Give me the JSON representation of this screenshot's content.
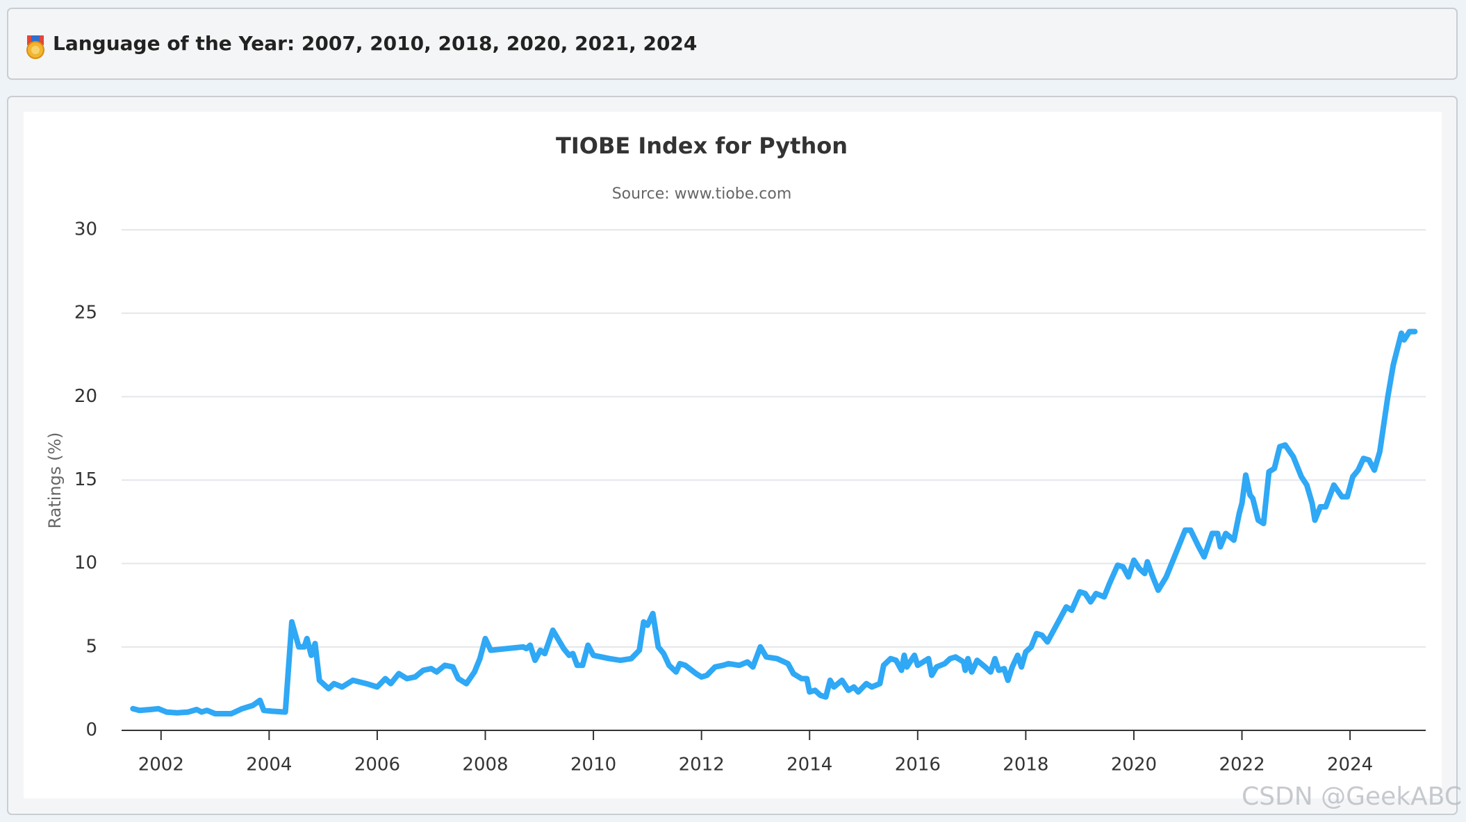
{
  "header": {
    "title": "Language of the Year: 2007, 2010, 2018, 2020, 2021, 2024"
  },
  "watermark": "CSDN @GeekABC",
  "chart_data": {
    "type": "line",
    "title": "TIOBE Index for Python",
    "subtitle": "Source: www.tiobe.com",
    "y_label": "Ratings (%)",
    "color": "#2fa8f5",
    "grid": true,
    "xlim": [
      2001.27,
      2025.4
    ],
    "xticks": [
      2002,
      2004,
      2006,
      2008,
      2010,
      2012,
      2014,
      2016,
      2018,
      2020,
      2022,
      2024
    ],
    "ylim": [
      0,
      30
    ],
    "yticks": [
      0,
      5,
      10,
      15,
      20,
      25,
      30
    ],
    "x": [
      2001.48,
      2001.6,
      2001.8,
      2001.95,
      2002.1,
      2002.3,
      2002.5,
      2002.66,
      2002.75,
      2002.85,
      2003.0,
      2003.3,
      2003.5,
      2003.7,
      2003.83,
      2003.9,
      2004.05,
      2004.3,
      2004.42,
      2004.55,
      2004.65,
      2004.7,
      2004.78,
      2004.85,
      2004.93,
      2005.1,
      2005.2,
      2005.35,
      2005.55,
      2005.8,
      2006.0,
      2006.15,
      2006.25,
      2006.4,
      2006.55,
      2006.7,
      2006.85,
      2007.0,
      2007.1,
      2007.25,
      2007.4,
      2007.5,
      2007.65,
      2007.8,
      2007.9,
      2008.0,
      2008.1,
      2008.4,
      2008.7,
      2008.76,
      2008.83,
      2008.92,
      2009.02,
      2009.1,
      2009.25,
      2009.45,
      2009.55,
      2009.62,
      2009.7,
      2009.8,
      2009.9,
      2010.0,
      2010.3,
      2010.5,
      2010.7,
      2010.85,
      2010.93,
      2011.0,
      2011.1,
      2011.2,
      2011.3,
      2011.4,
      2011.53,
      2011.6,
      2011.7,
      2011.9,
      2012.0,
      2012.1,
      2012.25,
      2012.4,
      2012.5,
      2012.7,
      2012.85,
      2012.95,
      2013.09,
      2013.2,
      2013.4,
      2013.6,
      2013.7,
      2013.85,
      2013.95,
      2014.0,
      2014.1,
      2014.2,
      2014.3,
      2014.38,
      2014.45,
      2014.6,
      2014.72,
      2014.82,
      2014.9,
      2015.05,
      2015.15,
      2015.3,
      2015.37,
      2015.5,
      2015.6,
      2015.7,
      2015.75,
      2015.8,
      2015.94,
      2016.0,
      2016.1,
      2016.2,
      2016.26,
      2016.35,
      2016.5,
      2016.6,
      2016.7,
      2016.85,
      2016.88,
      2016.93,
      2017.0,
      2017.1,
      2017.25,
      2017.35,
      2017.43,
      2017.5,
      2017.6,
      2017.67,
      2017.75,
      2017.85,
      2017.92,
      2018.0,
      2018.1,
      2018.2,
      2018.3,
      2018.4,
      2018.55,
      2018.75,
      2018.85,
      2019.0,
      2019.1,
      2019.2,
      2019.3,
      2019.45,
      2019.55,
      2019.7,
      2019.8,
      2019.9,
      2020.0,
      2020.1,
      2020.2,
      2020.25,
      2020.35,
      2020.45,
      2020.6,
      2020.75,
      2020.95,
      2021.05,
      2021.2,
      2021.3,
      2021.45,
      2021.55,
      2021.6,
      2021.7,
      2021.85,
      2021.95,
      2022.0,
      2022.07,
      2022.15,
      2022.2,
      2022.3,
      2022.4,
      2022.5,
      2022.6,
      2022.7,
      2022.8,
      2022.95,
      2023.1,
      2023.2,
      2023.3,
      2023.35,
      2023.45,
      2023.55,
      2023.7,
      2023.85,
      2023.95,
      2024.05,
      2024.15,
      2024.25,
      2024.35,
      2024.45,
      2024.55,
      2024.7,
      2024.8,
      2024.95,
      2025.0,
      2025.1,
      2025.2
    ],
    "values": [
      1.3,
      1.2,
      1.25,
      1.3,
      1.1,
      1.05,
      1.1,
      1.25,
      1.1,
      1.2,
      1.0,
      1.0,
      1.3,
      1.5,
      1.8,
      1.2,
      1.15,
      1.1,
      6.5,
      5.0,
      5.0,
      5.5,
      4.5,
      5.2,
      3.0,
      2.5,
      2.8,
      2.6,
      3.0,
      2.8,
      2.6,
      3.1,
      2.8,
      3.4,
      3.1,
      3.2,
      3.6,
      3.7,
      3.5,
      3.9,
      3.8,
      3.1,
      2.8,
      3.5,
      4.3,
      5.5,
      4.8,
      4.9,
      5.0,
      4.9,
      5.1,
      4.2,
      4.8,
      4.6,
      6.0,
      4.9,
      4.5,
      4.6,
      3.9,
      3.9,
      5.1,
      4.5,
      4.3,
      4.2,
      4.3,
      4.8,
      6.5,
      6.3,
      7.0,
      5.0,
      4.6,
      3.9,
      3.5,
      4.0,
      3.9,
      3.4,
      3.2,
      3.3,
      3.8,
      3.9,
      4.0,
      3.9,
      4.1,
      3.8,
      5.0,
      4.4,
      4.3,
      4.0,
      3.4,
      3.1,
      3.1,
      2.3,
      2.4,
      2.1,
      2.0,
      3.0,
      2.6,
      3.0,
      2.4,
      2.6,
      2.3,
      2.8,
      2.6,
      2.8,
      3.9,
      4.3,
      4.2,
      3.6,
      4.5,
      3.8,
      4.5,
      3.9,
      4.1,
      4.3,
      3.3,
      3.8,
      4.0,
      4.3,
      4.4,
      4.1,
      3.6,
      4.3,
      3.5,
      4.2,
      3.8,
      3.5,
      4.3,
      3.6,
      3.7,
      3.0,
      3.8,
      4.5,
      3.8,
      4.7,
      5.0,
      5.8,
      5.7,
      5.3,
      6.2,
      7.4,
      7.2,
      8.3,
      8.2,
      7.7,
      8.2,
      8.0,
      8.8,
      9.9,
      9.8,
      9.2,
      10.2,
      9.7,
      9.4,
      10.1,
      9.2,
      8.4,
      9.2,
      10.4,
      12.0,
      12.0,
      11.0,
      10.4,
      11.8,
      11.8,
      11.0,
      11.8,
      11.4,
      13.0,
      13.6,
      15.3,
      14.1,
      13.9,
      12.6,
      12.4,
      15.5,
      15.7,
      17.0,
      17.1,
      16.4,
      15.2,
      14.7,
      13.6,
      12.6,
      13.4,
      13.4,
      14.7,
      14.0,
      14.0,
      15.2,
      15.6,
      16.3,
      16.2,
      15.6,
      16.7,
      20.0,
      21.9,
      23.8,
      23.4,
      23.9,
      23.9
    ]
  }
}
